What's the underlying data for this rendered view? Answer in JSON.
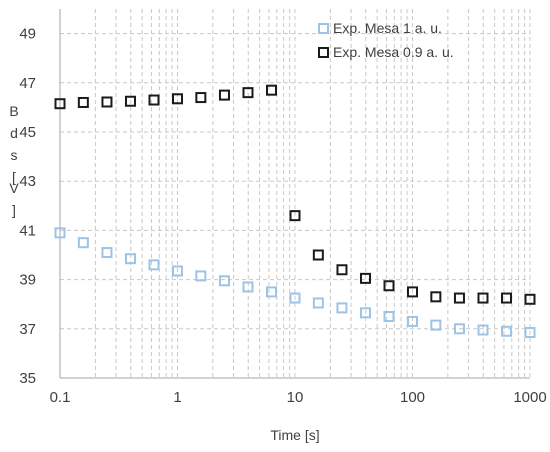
{
  "chart_data": {
    "type": "scatter",
    "xscale": "log",
    "xlim": [
      0.1,
      1000
    ],
    "ylim": [
      35,
      50
    ],
    "grid": true,
    "legend_position": "top-right",
    "xlabel": "Time [s]",
    "ylabel": "B d s [V ]",
    "xticks": [
      {
        "value": 0.1,
        "label": "0.1"
      },
      {
        "value": 1,
        "label": "1"
      },
      {
        "value": 10,
        "label": "10"
      },
      {
        "value": 100,
        "label": "100"
      },
      {
        "value": 1000,
        "label": "1000"
      }
    ],
    "yticks": [
      {
        "value": 35,
        "label": "35"
      },
      {
        "value": 37,
        "label": "37"
      },
      {
        "value": 39,
        "label": "39"
      },
      {
        "value": 41,
        "label": "41"
      },
      {
        "value": 43,
        "label": "43"
      },
      {
        "value": 45,
        "label": "45"
      },
      {
        "value": 47,
        "label": "47"
      },
      {
        "value": 49,
        "label": "49"
      }
    ],
    "series": [
      {
        "name": "Exp. Mesa 1 a. u.",
        "color": "#9dc3e6",
        "marker": "open-square",
        "points": [
          {
            "x": 0.1,
            "y": 40.9
          },
          {
            "x": 0.158,
            "y": 40.5
          },
          {
            "x": 0.251,
            "y": 40.1
          },
          {
            "x": 0.398,
            "y": 39.85
          },
          {
            "x": 0.631,
            "y": 39.6
          },
          {
            "x": 1.0,
            "y": 39.35
          },
          {
            "x": 1.58,
            "y": 39.15
          },
          {
            "x": 2.51,
            "y": 38.95
          },
          {
            "x": 3.98,
            "y": 38.7
          },
          {
            "x": 6.31,
            "y": 38.5
          },
          {
            "x": 10,
            "y": 38.25
          },
          {
            "x": 15.8,
            "y": 38.05
          },
          {
            "x": 25.1,
            "y": 37.85
          },
          {
            "x": 39.8,
            "y": 37.65
          },
          {
            "x": 63.1,
            "y": 37.5
          },
          {
            "x": 100,
            "y": 37.3
          },
          {
            "x": 158,
            "y": 37.15
          },
          {
            "x": 251,
            "y": 37.0
          },
          {
            "x": 398,
            "y": 36.95
          },
          {
            "x": 631,
            "y": 36.9
          },
          {
            "x": 1000,
            "y": 36.85
          }
        ]
      },
      {
        "name": "Exp. Mesa 0.9 a. u.",
        "color": "#1a1a1a",
        "marker": "open-square",
        "points": [
          {
            "x": 0.1,
            "y": 46.15
          },
          {
            "x": 0.158,
            "y": 46.2
          },
          {
            "x": 0.251,
            "y": 46.22
          },
          {
            "x": 0.398,
            "y": 46.25
          },
          {
            "x": 0.631,
            "y": 46.3
          },
          {
            "x": 1.0,
            "y": 46.35
          },
          {
            "x": 1.58,
            "y": 46.4
          },
          {
            "x": 2.51,
            "y": 46.5
          },
          {
            "x": 3.98,
            "y": 46.6
          },
          {
            "x": 6.31,
            "y": 46.7
          },
          {
            "x": 10,
            "y": 41.6
          },
          {
            "x": 15.8,
            "y": 40.0
          },
          {
            "x": 25.1,
            "y": 39.4
          },
          {
            "x": 39.8,
            "y": 39.05
          },
          {
            "x": 63.1,
            "y": 38.75
          },
          {
            "x": 100,
            "y": 38.5
          },
          {
            "x": 158,
            "y": 38.3
          },
          {
            "x": 251,
            "y": 38.25
          },
          {
            "x": 398,
            "y": 38.25
          },
          {
            "x": 631,
            "y": 38.25
          },
          {
            "x": 1000,
            "y": 38.2
          }
        ]
      }
    ]
  }
}
